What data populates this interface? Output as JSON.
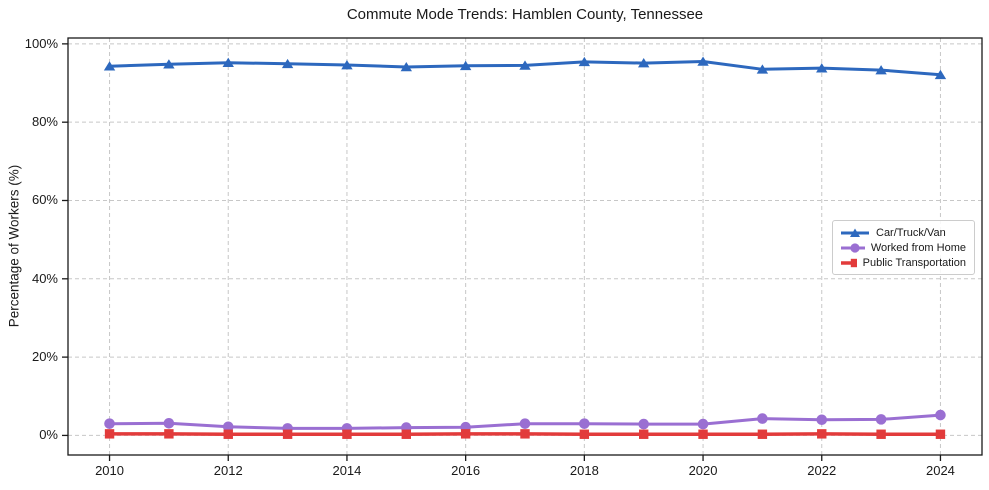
{
  "chart_data": {
    "type": "line",
    "title": "Commute Mode Trends: Hamblen County, Tennessee",
    "xlabel": "",
    "ylabel": "Percentage of Workers (%)",
    "x": [
      2010,
      2011,
      2012,
      2013,
      2014,
      2015,
      2016,
      2017,
      2018,
      2019,
      2020,
      2021,
      2022,
      2023,
      2024
    ],
    "series": [
      {
        "name": "Car/Truck/Van",
        "color": "#2d68be",
        "marker": "triangle",
        "line_width": 3,
        "values": [
          94.3,
          94.8,
          95.2,
          94.9,
          94.6,
          94.1,
          94.4,
          94.5,
          95.4,
          95.1,
          95.5,
          93.5,
          93.8,
          93.3,
          92.1
        ]
      },
      {
        "name": "Worked from Home",
        "color": "#9a6fd2",
        "marker": "circle",
        "line_width": 3,
        "values": [
          3.0,
          3.1,
          2.2,
          1.8,
          1.8,
          2.0,
          2.1,
          3.0,
          3.0,
          2.9,
          2.9,
          4.3,
          4.0,
          4.1,
          5.2
        ]
      },
      {
        "name": "Public Transportation",
        "color": "#e23b3b",
        "marker": "square",
        "line_width": 3.5,
        "values": [
          0.4,
          0.4,
          0.3,
          0.3,
          0.3,
          0.3,
          0.4,
          0.4,
          0.3,
          0.3,
          0.3,
          0.3,
          0.4,
          0.3,
          0.3
        ]
      }
    ],
    "xlim": [
      2009.3,
      2024.7
    ],
    "ylim": [
      -5,
      101.5
    ],
    "xticks": [
      2010,
      2012,
      2014,
      2016,
      2018,
      2020,
      2022,
      2024
    ],
    "yticks": [
      0,
      20,
      40,
      60,
      80,
      100
    ],
    "ytick_labels": [
      "0%",
      "20%",
      "40%",
      "60%",
      "80%",
      "100%"
    ],
    "grid": true,
    "grid_style": "dashed",
    "legend_position": "center-right"
  },
  "colors": {
    "grid": "#c7c7c7",
    "spine": "#1a1a1a",
    "text": "#1a1a1a",
    "background": "#ffffff"
  }
}
